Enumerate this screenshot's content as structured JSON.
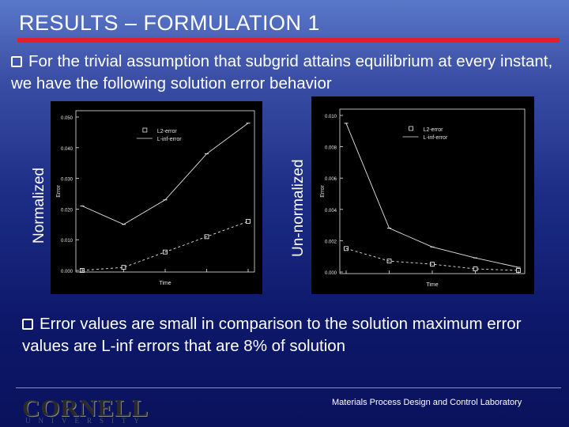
{
  "slide": {
    "title": "RESULTS – FORMULATION 1",
    "bullet1": "For the trivial assumption that subgrid attains equilibrium at every instant, we have the following solution error behavior",
    "bullet2": "Error values are small in comparison to the solution maximum error values are L-inf errors that are 8% of solution",
    "left_label": "Normalized",
    "right_label": "Un-normalized",
    "footer_lab": "Materials Process Design and Control Laboratory",
    "logo_main": "CORNELL",
    "logo_sub": "U N I V E R S I T Y"
  },
  "colors": {
    "accent_rule": "#e0202a",
    "plot_bg": "#000000",
    "plot_fg": "#e6e6e6"
  },
  "chart_data": [
    {
      "type": "line",
      "title": "",
      "xlabel": "Time",
      "ylabel": "Error",
      "x": [
        0,
        1,
        2,
        3,
        4
      ],
      "legend": [
        "L2-error",
        "L-inf-error"
      ],
      "ylim": [
        0,
        0.05
      ],
      "series": [
        {
          "name": "L-inf-error",
          "values": [
            0.021,
            0.015,
            0.023,
            0.038,
            0.048
          ]
        },
        {
          "name": "L2-error",
          "values": [
            0.0,
            0.001,
            0.006,
            0.011,
            0.016
          ]
        }
      ]
    },
    {
      "type": "line",
      "title": "",
      "xlabel": "Time",
      "ylabel": "Error",
      "x": [
        0,
        1,
        2,
        3,
        4
      ],
      "legend": [
        "L2-error",
        "L-inf-error"
      ],
      "ylim": [
        0,
        0.01
      ],
      "series": [
        {
          "name": "L-inf-error",
          "values": [
            0.0095,
            0.0028,
            0.0016,
            0.0009,
            0.0003
          ]
        },
        {
          "name": "L2-error",
          "values": [
            0.0015,
            0.0007,
            0.0005,
            0.0002,
            0.0001
          ]
        }
      ]
    }
  ]
}
